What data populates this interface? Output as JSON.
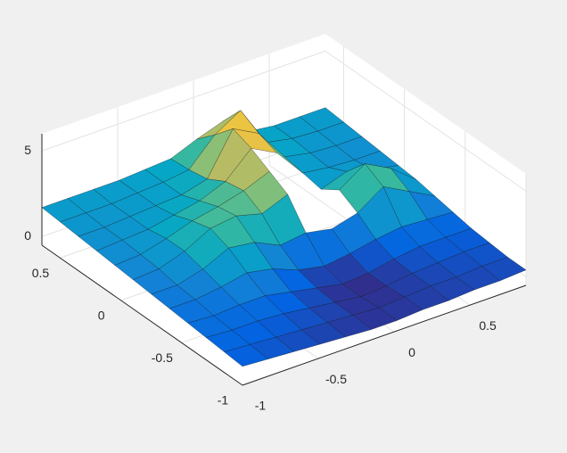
{
  "chart_data": {
    "type": "surface",
    "x": [
      -1,
      -0.83,
      -0.66,
      -0.49,
      -0.32,
      -0.15,
      0.02,
      0.19,
      0.36,
      0.53,
      0.7,
      0.87
    ],
    "y": [
      -1,
      -0.85,
      -0.7,
      -0.55,
      -0.4,
      -0.25,
      -0.1,
      0.05,
      0.2,
      0.35,
      0.5,
      0.65
    ],
    "z": [
      [
        0.6,
        0.5,
        0.4,
        0.3,
        0.2,
        0.1,
        0.1,
        0.2,
        0.2,
        0.3,
        0.3,
        0.4
      ],
      [
        0.7,
        0.6,
        0.5,
        0.4,
        0.3,
        0.2,
        0.1,
        0.2,
        0.3,
        0.3,
        0.4,
        0.4
      ],
      [
        0.8,
        0.7,
        0.7,
        0.6,
        0.4,
        0.2,
        0.0,
        0.1,
        0.3,
        0.4,
        0.5,
        0.5
      ],
      [
        0.9,
        0.8,
        0.9,
        0.9,
        0.6,
        0.3,
        0.0,
        0.1,
        0.4,
        0.6,
        0.6,
        0.6
      ],
      [
        1.0,
        1.0,
        1.2,
        1.5,
        1.2,
        0.6,
        0.3,
        0.5,
        0.8,
        1.0,
        0.9,
        0.8
      ],
      [
        1.1,
        1.1,
        1.5,
        2.2,
        2.0,
        1.3,
        1.5,
        1.2,
        1.6,
        2.6,
        1.8,
        1.0
      ],
      [
        1.2,
        1.3,
        1.8,
        2.6,
        2.8,
        2.4,
        3.0,
        null,
        2.2,
        3.2,
        2.4,
        1.2
      ],
      [
        1.3,
        1.4,
        1.8,
        2.3,
        2.6,
        3.0,
        3.6,
        null,
        1.5,
        2.0,
        1.6,
        1.3
      ],
      [
        1.4,
        1.5,
        1.6,
        1.9,
        2.2,
        2.8,
        4.2,
        3.4,
        1.7,
        1.5,
        1.4,
        1.4
      ],
      [
        1.5,
        1.5,
        1.6,
        1.7,
        1.8,
        2.2,
        4.6,
        3.8,
        1.9,
        1.6,
        1.5,
        1.5
      ],
      [
        1.6,
        1.6,
        1.6,
        1.7,
        1.8,
        2.0,
        3.5,
        4.4,
        2.0,
        1.7,
        1.6,
        1.6
      ],
      [
        1.7,
        1.7,
        1.7,
        1.7,
        1.8,
        1.9,
        2.5,
        3.0,
        1.9,
        1.7,
        1.7,
        1.7
      ]
    ],
    "xlim": [
      -1,
      0.87
    ],
    "ylim": [
      -1,
      0.65
    ],
    "zlim": [
      -0.5,
      6
    ],
    "xticks": [
      -1,
      -0.5,
      0,
      0.5
    ],
    "yticks": [
      -1,
      -0.5,
      0,
      0.5
    ],
    "zticks": [
      0,
      5
    ],
    "clim": [
      0,
      5
    ],
    "colormap": [
      "#352a87",
      "#0363e1",
      "#1485d4",
      "#06a7c6",
      "#38b99e",
      "#92bf73",
      "#d9ba56",
      "#fcce2e",
      "#f9fb0e"
    ],
    "grid": true
  }
}
